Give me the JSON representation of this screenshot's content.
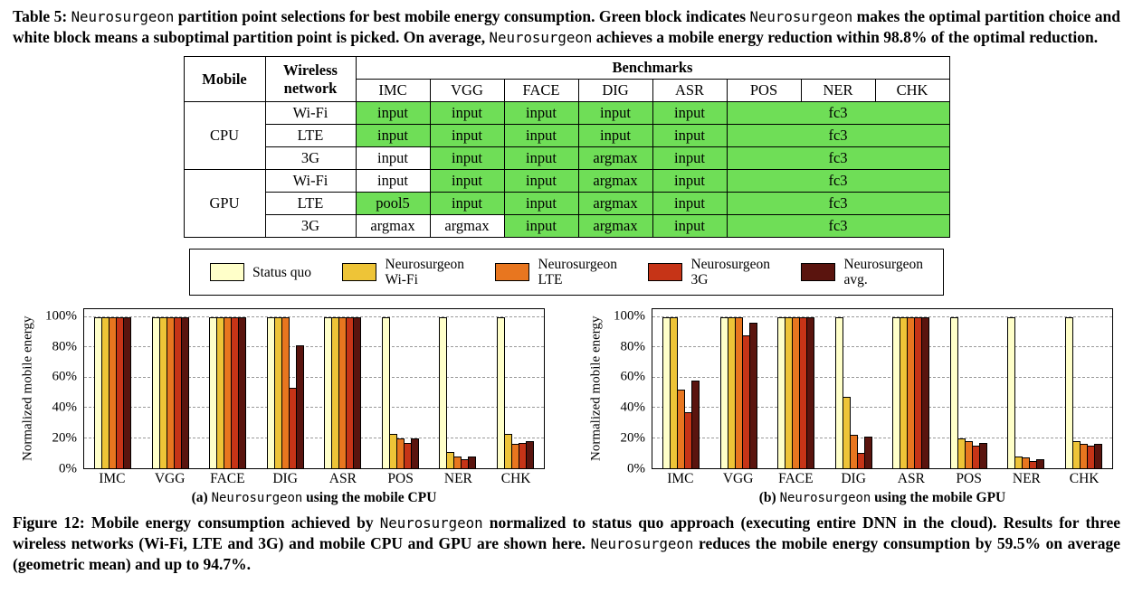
{
  "colors": {
    "optimal_green": "#6FDE57",
    "status_quo": "#FFFFC9",
    "wifi": "#EEC437",
    "lte": "#E8761F",
    "g3": "#C63417",
    "avg": "#5A140E"
  },
  "table_caption_segments": [
    {
      "text": "Table 5: ",
      "mono": false
    },
    {
      "text": "Neurosurgeon",
      "mono": true
    },
    {
      "text": " partition point selections for best mobile energy consumption. Green block indicates ",
      "mono": false
    },
    {
      "text": "Neurosurgeon",
      "mono": true
    },
    {
      "text": " makes the optimal partition choice and white block means a suboptimal partition point is picked. On average, ",
      "mono": false
    },
    {
      "text": "Neurosurgeon",
      "mono": true
    },
    {
      "text": " achieves a mobile energy reduction within 98.8% of the optimal reduction.",
      "mono": false
    }
  ],
  "figure_caption_segments": [
    {
      "text": "Figure 12: Mobile energy consumption achieved by ",
      "mono": false
    },
    {
      "text": "Neurosurgeon",
      "mono": true
    },
    {
      "text": " normalized to status quo approach (executing entire DNN in the cloud). Results for three wireless networks (Wi-Fi, LTE and 3G) and mobile CPU and GPU are shown here. ",
      "mono": false
    },
    {
      "text": "Neurosurgeon",
      "mono": true
    },
    {
      "text": " reduces the mobile energy consumption by 59.5% on average (geometric mean) and up to 94.7%.",
      "mono": false
    }
  ],
  "table": {
    "header": {
      "mobile": "Mobile",
      "network_lines": [
        "Wireless",
        "network"
      ],
      "benchmarks": "Benchmarks",
      "columns": [
        "IMC",
        "VGG",
        "FACE",
        "DIG",
        "ASR",
        "POS",
        "NER",
        "CHK"
      ]
    },
    "groups": [
      {
        "device": "CPU",
        "rows": [
          {
            "network": "Wi-Fi",
            "cells": [
              {
                "text": "input",
                "green": true
              },
              {
                "text": "input",
                "green": true
              },
              {
                "text": "input",
                "green": true
              },
              {
                "text": "input",
                "green": true
              },
              {
                "text": "input",
                "green": true
              }
            ],
            "fc3": {
              "text": "fc3",
              "green": true,
              "colspan": 3
            }
          },
          {
            "network": "LTE",
            "cells": [
              {
                "text": "input",
                "green": true
              },
              {
                "text": "input",
                "green": true
              },
              {
                "text": "input",
                "green": true
              },
              {
                "text": "input",
                "green": true
              },
              {
                "text": "input",
                "green": true
              }
            ],
            "fc3": {
              "text": "fc3",
              "green": true,
              "colspan": 3
            }
          },
          {
            "network": "3G",
            "cells": [
              {
                "text": "input",
                "green": false
              },
              {
                "text": "input",
                "green": true
              },
              {
                "text": "input",
                "green": true
              },
              {
                "text": "argmax",
                "green": true
              },
              {
                "text": "input",
                "green": true
              }
            ],
            "fc3": {
              "text": "fc3",
              "green": true,
              "colspan": 3
            }
          }
        ]
      },
      {
        "device": "GPU",
        "rows": [
          {
            "network": "Wi-Fi",
            "cells": [
              {
                "text": "input",
                "green": false
              },
              {
                "text": "input",
                "green": true
              },
              {
                "text": "input",
                "green": true
              },
              {
                "text": "argmax",
                "green": true
              },
              {
                "text": "input",
                "green": true
              }
            ],
            "fc3": {
              "text": "fc3",
              "green": true,
              "colspan": 3
            }
          },
          {
            "network": "LTE",
            "cells": [
              {
                "text": "pool5",
                "green": true
              },
              {
                "text": "input",
                "green": true
              },
              {
                "text": "input",
                "green": true
              },
              {
                "text": "argmax",
                "green": true
              },
              {
                "text": "input",
                "green": true
              }
            ],
            "fc3": {
              "text": "fc3",
              "green": true,
              "colspan": 3
            }
          },
          {
            "network": "3G",
            "cells": [
              {
                "text": "argmax",
                "green": false
              },
              {
                "text": "argmax",
                "green": false
              },
              {
                "text": "input",
                "green": true
              },
              {
                "text": "argmax",
                "green": true
              },
              {
                "text": "input",
                "green": true
              }
            ],
            "fc3": {
              "text": "fc3",
              "green": true,
              "colspan": 3
            }
          }
        ]
      }
    ]
  },
  "legend": {
    "items": [
      {
        "color": "#FFFFC9",
        "lines": [
          "Status quo"
        ]
      },
      {
        "color": "#EEC437",
        "lines": [
          "Neurosurgeon",
          "Wi-Fi"
        ]
      },
      {
        "color": "#E8761F",
        "lines": [
          "Neurosurgeon",
          "LTE"
        ]
      },
      {
        "color": "#C63417",
        "lines": [
          "Neurosurgeon",
          "3G"
        ]
      },
      {
        "color": "#5A140E",
        "lines": [
          "Neurosurgeon",
          "avg."
        ]
      }
    ]
  },
  "chart_data": [
    {
      "type": "bar",
      "title": "(a) Neurosurgeon using the mobile CPU",
      "caption_segments": [
        {
          "text": "(a) ",
          "mono": false
        },
        {
          "text": "Neurosurgeon",
          "mono": true
        },
        {
          "text": " using the mobile CPU",
          "mono": false
        }
      ],
      "xlabel": "",
      "ylabel": "Normalized mobile energy",
      "categories": [
        "IMC",
        "VGG",
        "FACE",
        "DIG",
        "ASR",
        "POS",
        "NER",
        "CHK"
      ],
      "series": [
        {
          "name": "Status quo",
          "color": "#FFFFC9",
          "values": [
            100,
            100,
            100,
            100,
            100,
            100,
            100,
            100
          ]
        },
        {
          "name": "Neurosurgeon Wi-Fi",
          "color": "#EEC437",
          "values": [
            100,
            100,
            100,
            100,
            100,
            23,
            11,
            23
          ]
        },
        {
          "name": "Neurosurgeon LTE",
          "color": "#E8761F",
          "values": [
            100,
            100,
            100,
            100,
            100,
            20,
            8,
            16
          ]
        },
        {
          "name": "Neurosurgeon 3G",
          "color": "#C63417",
          "values": [
            100,
            100,
            100,
            53,
            100,
            17,
            6,
            17
          ]
        },
        {
          "name": "Neurosurgeon avg.",
          "color": "#5A140E",
          "values": [
            100,
            100,
            100,
            81,
            100,
            20,
            8,
            18
          ]
        }
      ],
      "ylim": [
        0,
        105
      ],
      "yticks": [
        0,
        20,
        40,
        60,
        80,
        100
      ],
      "grid": true,
      "legend_position": "shared box above charts"
    },
    {
      "type": "bar",
      "title": "(b) Neurosurgeon using the mobile GPU",
      "caption_segments": [
        {
          "text": "(b) ",
          "mono": false
        },
        {
          "text": "Neurosurgeon",
          "mono": true
        },
        {
          "text": " using the mobile GPU",
          "mono": false
        }
      ],
      "xlabel": "",
      "ylabel": "Normalized mobile energy",
      "categories": [
        "IMC",
        "VGG",
        "FACE",
        "DIG",
        "ASR",
        "POS",
        "NER",
        "CHK"
      ],
      "series": [
        {
          "name": "Status quo",
          "color": "#FFFFC9",
          "values": [
            100,
            100,
            100,
            100,
            100,
            100,
            100,
            100
          ]
        },
        {
          "name": "Neurosurgeon Wi-Fi",
          "color": "#EEC437",
          "values": [
            100,
            100,
            100,
            47,
            100,
            20,
            8,
            18
          ]
        },
        {
          "name": "Neurosurgeon LTE",
          "color": "#E8761F",
          "values": [
            52,
            100,
            100,
            22,
            100,
            18,
            7,
            16
          ]
        },
        {
          "name": "Neurosurgeon 3G",
          "color": "#C63417",
          "values": [
            37,
            88,
            100,
            10,
            100,
            15,
            5,
            15
          ]
        },
        {
          "name": "Neurosurgeon avg.",
          "color": "#5A140E",
          "values": [
            58,
            96,
            100,
            21,
            100,
            17,
            6,
            16
          ]
        }
      ],
      "ylim": [
        0,
        105
      ],
      "yticks": [
        0,
        20,
        40,
        60,
        80,
        100
      ],
      "grid": true,
      "legend_position": "shared box above charts"
    }
  ]
}
